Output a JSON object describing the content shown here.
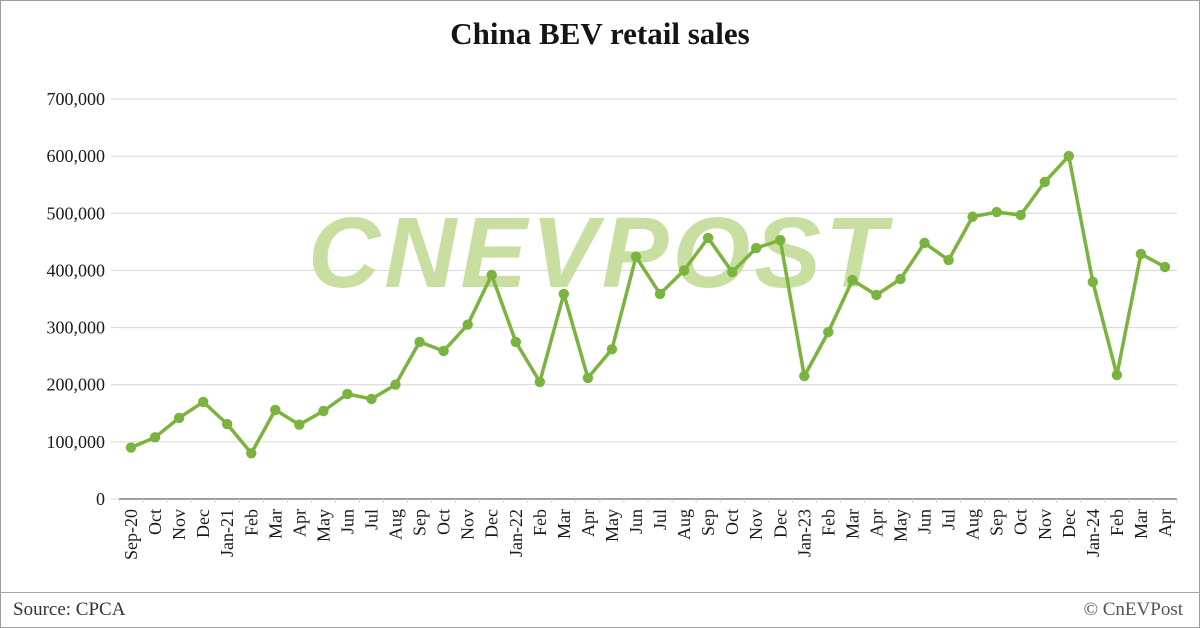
{
  "footer": {
    "source": "Source: CPCA",
    "copyright": "© CnEVPost"
  },
  "chart_data": {
    "type": "line",
    "title": "China BEV retail sales",
    "categories": [
      "Sep-20",
      "Oct",
      "Nov",
      "Dec",
      "Jan-21",
      "Feb",
      "Mar",
      "Apr",
      "May",
      "Jun",
      "Jul",
      "Aug",
      "Sep",
      "Oct",
      "Nov",
      "Dec",
      "Jan-22",
      "Feb",
      "Mar",
      "Apr",
      "May",
      "Jun",
      "Jul",
      "Aug",
      "Sep",
      "Oct",
      "Nov",
      "Dec",
      "Jan-23",
      "Feb",
      "Mar",
      "Apr",
      "May",
      "Jun",
      "Jul",
      "Aug",
      "Sep",
      "Oct",
      "Nov",
      "Dec",
      "Jan-24",
      "Feb",
      "Mar",
      "Apr"
    ],
    "values": [
      90000,
      108000,
      142000,
      170000,
      131000,
      80000,
      156000,
      130000,
      154000,
      184000,
      175000,
      200000,
      275000,
      259000,
      305000,
      392000,
      275000,
      205000,
      359000,
      212000,
      262000,
      424000,
      359000,
      400000,
      457000,
      397000,
      439000,
      453000,
      215000,
      292000,
      383000,
      357000,
      385000,
      448000,
      418000,
      494000,
      502000,
      497000,
      555000,
      600000,
      380000,
      217000,
      429000,
      406000
    ],
    "xlabel": "",
    "ylabel": "",
    "ylim": [
      0,
      700000
    ],
    "ytick_interval": 100000,
    "grid": true,
    "legend_position": "none",
    "line_color": "#7ab33e",
    "grid_color": "#d6d6d6",
    "axis_color": "#808080",
    "watermark": "CNEVPOST",
    "watermark_color": "#c9dfa2"
  }
}
